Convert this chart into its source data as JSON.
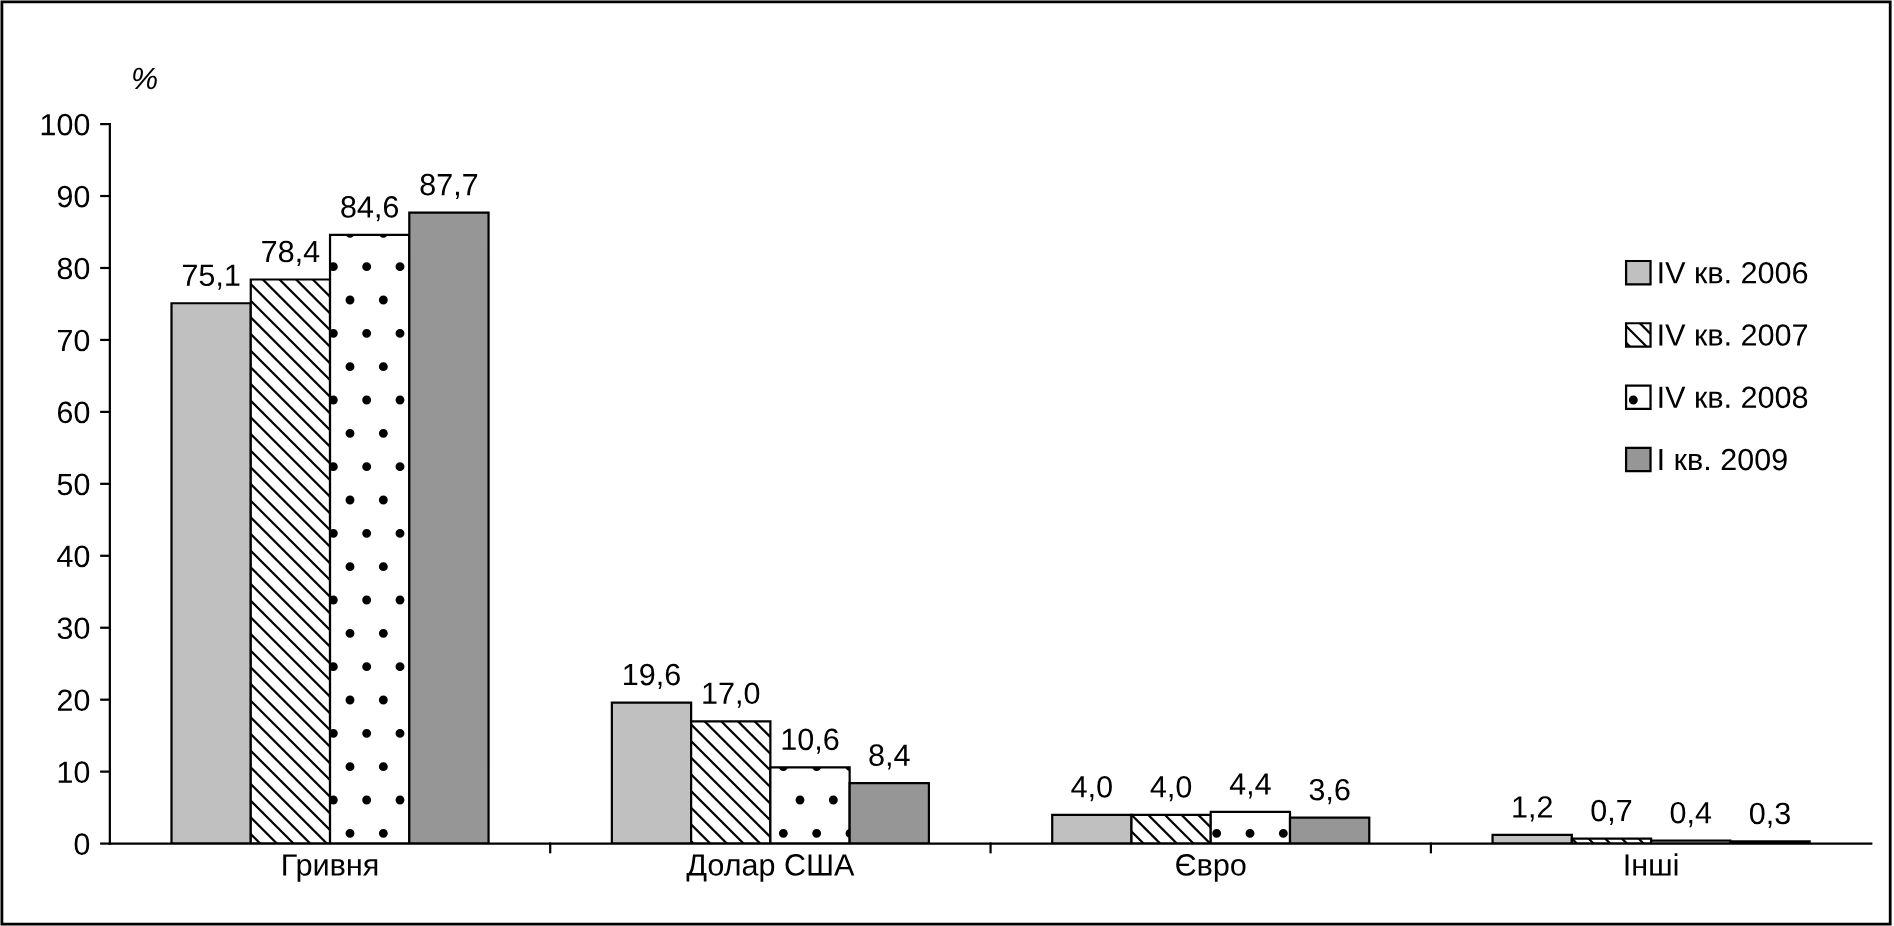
{
  "chart_data": {
    "type": "bar",
    "ylabel": "%",
    "categories": [
      "Гривня",
      "Долар США",
      "Євро",
      "Інші"
    ],
    "series": [
      {
        "name": "IV кв. 2006",
        "color": "#c0c0c0",
        "values": [
          75.1,
          19.6,
          4.0,
          1.2
        ],
        "value_labels": [
          "75,1",
          "19,6",
          "4,0",
          "1,2"
        ]
      },
      {
        "name": "IV кв. 2007",
        "color": "#ffffff",
        "values": [
          78.4,
          17.0,
          4.0,
          0.7
        ],
        "value_labels": [
          "78,4",
          "17,0",
          "4,0",
          "0,7"
        ]
      },
      {
        "name": "IV кв. 2008",
        "color": "#ffffff",
        "values": [
          84.6,
          10.6,
          4.4,
          0.4
        ],
        "value_labels": [
          "84,6",
          "10,6",
          "4,4",
          "0,4"
        ]
      },
      {
        "name": "I кв. 2009",
        "color": "#969696",
        "values": [
          87.7,
          8.4,
          3.6,
          0.3
        ],
        "value_labels": [
          "87,7",
          "8,4",
          "3,6",
          "0,3"
        ]
      }
    ],
    "ylim": [
      0,
      100
    ],
    "yticks": [
      0,
      10,
      20,
      30,
      40,
      50,
      60,
      70,
      80,
      90,
      100
    ],
    "grid": false,
    "legend": "right"
  }
}
